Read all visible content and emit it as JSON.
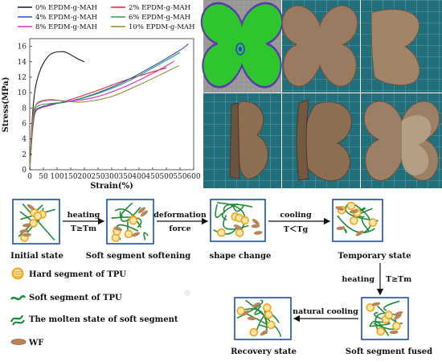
{
  "chart_data": {
    "type": "line",
    "title": "",
    "xlabel": "Strain(%)",
    "ylabel": "Stress(MPa)",
    "xlim": [
      0,
      600
    ],
    "ylim": [
      0,
      17
    ],
    "x_ticks": [
      0,
      50,
      100,
      150,
      200,
      250,
      300,
      350,
      400,
      450,
      500,
      550,
      600
    ],
    "y_ticks": [
      0,
      2,
      4,
      6,
      8,
      10,
      12,
      14,
      16
    ],
    "grid": false,
    "legend_position": "top (above plot, two columns)",
    "series": [
      {
        "name": "0% EPDM-g-MAH",
        "color": "#1a1a1a",
        "x": [
          0,
          10,
          20,
          35,
          50,
          70,
          90,
          110,
          125,
          140,
          160,
          180,
          200
        ],
        "y": [
          0,
          7.0,
          10.5,
          12.6,
          13.8,
          14.8,
          15.2,
          15.3,
          15.3,
          15.1,
          14.7,
          14.3,
          14.0
        ]
      },
      {
        "name": "2% EPDM-g-MAH",
        "color": "#e8212b",
        "x": [
          0,
          10,
          20,
          40,
          80,
          150,
          250,
          350,
          450,
          500
        ],
        "y": [
          0,
          5.0,
          7.4,
          8.0,
          8.4,
          9.1,
          10.3,
          11.6,
          12.7,
          13.2
        ]
      },
      {
        "name": "4% EPDM-g-MAH",
        "color": "#2a4fd8",
        "x": [
          0,
          10,
          20,
          40,
          80,
          150,
          250,
          350,
          450,
          550,
          580
        ],
        "y": [
          0,
          5.2,
          7.5,
          8.1,
          8.5,
          8.9,
          10.0,
          11.5,
          13.4,
          15.5,
          16.3
        ]
      },
      {
        "name": "6% EPDM-g-MAH",
        "color": "#2e9e4f",
        "x": [
          0,
          10,
          20,
          40,
          80,
          150,
          250,
          350,
          450,
          550
        ],
        "y": [
          0,
          5.5,
          7.8,
          8.4,
          8.6,
          8.9,
          9.9,
          11.3,
          13.2,
          15.2
        ]
      },
      {
        "name": "8% EPDM-g-MAH",
        "color": "#e02ad4",
        "x": [
          0,
          10,
          20,
          40,
          70,
          100,
          150,
          250,
          350,
          450,
          530
        ],
        "y": [
          0,
          6.5,
          8.2,
          8.8,
          9.0,
          9.0,
          8.9,
          9.5,
          10.8,
          12.5,
          14.1
        ]
      },
      {
        "name": "10% EPDM-g-MAH",
        "color": "#8a8a2e",
        "x": [
          0,
          10,
          20,
          40,
          80,
          130,
          200,
          300,
          400,
          500,
          545
        ],
        "y": [
          0,
          6.0,
          8.2,
          8.9,
          9.1,
          8.9,
          8.8,
          9.5,
          11.0,
          12.7,
          13.5
        ]
      }
    ]
  },
  "diagram": {
    "stages": {
      "initial": "Initial state",
      "softening": "Soft segment softening",
      "shape_change": "shape change",
      "temporary": "Temporary state",
      "fused": "Soft segment fused",
      "recovery": "Recovery state"
    },
    "arrows": {
      "heating1_top": "heating",
      "heating1_bottom": "T≥Tm",
      "deform_top": "deformation",
      "deform_bottom": "force",
      "cooling_top": "cooling",
      "cooling_bottom": "T＜Tg",
      "heating2_left": "heating",
      "heating2_right": "T≥Tm",
      "natural_cooling": "natural cooling"
    },
    "legend": {
      "hard": "Hard segment of TPU",
      "soft": "Soft segment of TPU",
      "molten": "The molten state of soft segment",
      "wf": "WF"
    }
  },
  "colors": {
    "hard_segment": "#f0a41e",
    "soft_segment": "#1e8a3a",
    "wf": "#b8845a",
    "box_border": "#1a4fa8",
    "mat_background": "#1f6f7a",
    "butterfly_brown": "#8e6e52"
  }
}
